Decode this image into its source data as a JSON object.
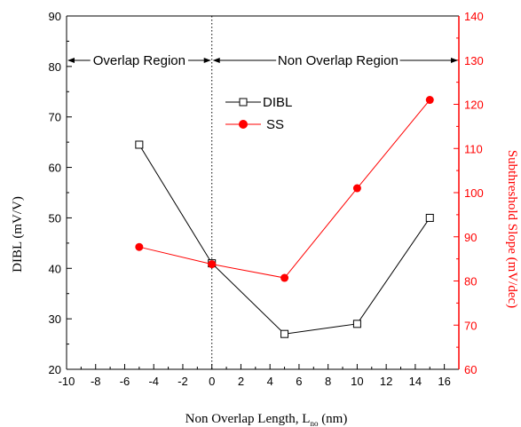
{
  "colors": {
    "left_axis": "#000000",
    "right_axis": "#ff0000",
    "dibl_series": "#000000",
    "ss_series": "#ff0000"
  },
  "chart_data": {
    "type": "line",
    "xlabel": {
      "main": "Non Overlap Length, L",
      "subscript": "no",
      "suffix": " (nm)"
    },
    "ylabel_left": "DIBL (mV/V)",
    "ylabel_right": "Subthreshold Slope (mV/dec)",
    "xlim": [
      -10,
      17
    ],
    "x_ticks": [
      -10,
      -8,
      -6,
      -4,
      -2,
      0,
      2,
      4,
      6,
      8,
      10,
      12,
      14,
      16
    ],
    "ylim_left": [
      20,
      90
    ],
    "y_ticks_left": [
      20,
      30,
      40,
      50,
      60,
      70,
      80,
      90
    ],
    "ylim_right": [
      60,
      140
    ],
    "y_ticks_right": [
      60,
      70,
      80,
      90,
      100,
      110,
      120,
      130,
      140
    ],
    "grid": false,
    "legend_position": "upper-center",
    "series": [
      {
        "name": "DIBL",
        "axis": "left",
        "marker": "open-square",
        "x": [
          -5,
          0,
          5,
          10,
          15
        ],
        "y": [
          64.5,
          41,
          27,
          29,
          50
        ]
      },
      {
        "name": "SS",
        "axis": "right",
        "marker": "filled-circle",
        "x": [
          -5,
          0,
          5,
          10,
          15
        ],
        "y": [
          87.7,
          83.8,
          80.7,
          101,
          121
        ]
      }
    ],
    "annotations": [
      {
        "text": "Overlap Region",
        "arrow_from_x": -10,
        "arrow_to_x": 0
      },
      {
        "text": "Non Overlap Region",
        "arrow_from_x": 0,
        "arrow_to_x": 17
      }
    ],
    "reference_line": {
      "x": 0,
      "style": "dotted"
    }
  }
}
